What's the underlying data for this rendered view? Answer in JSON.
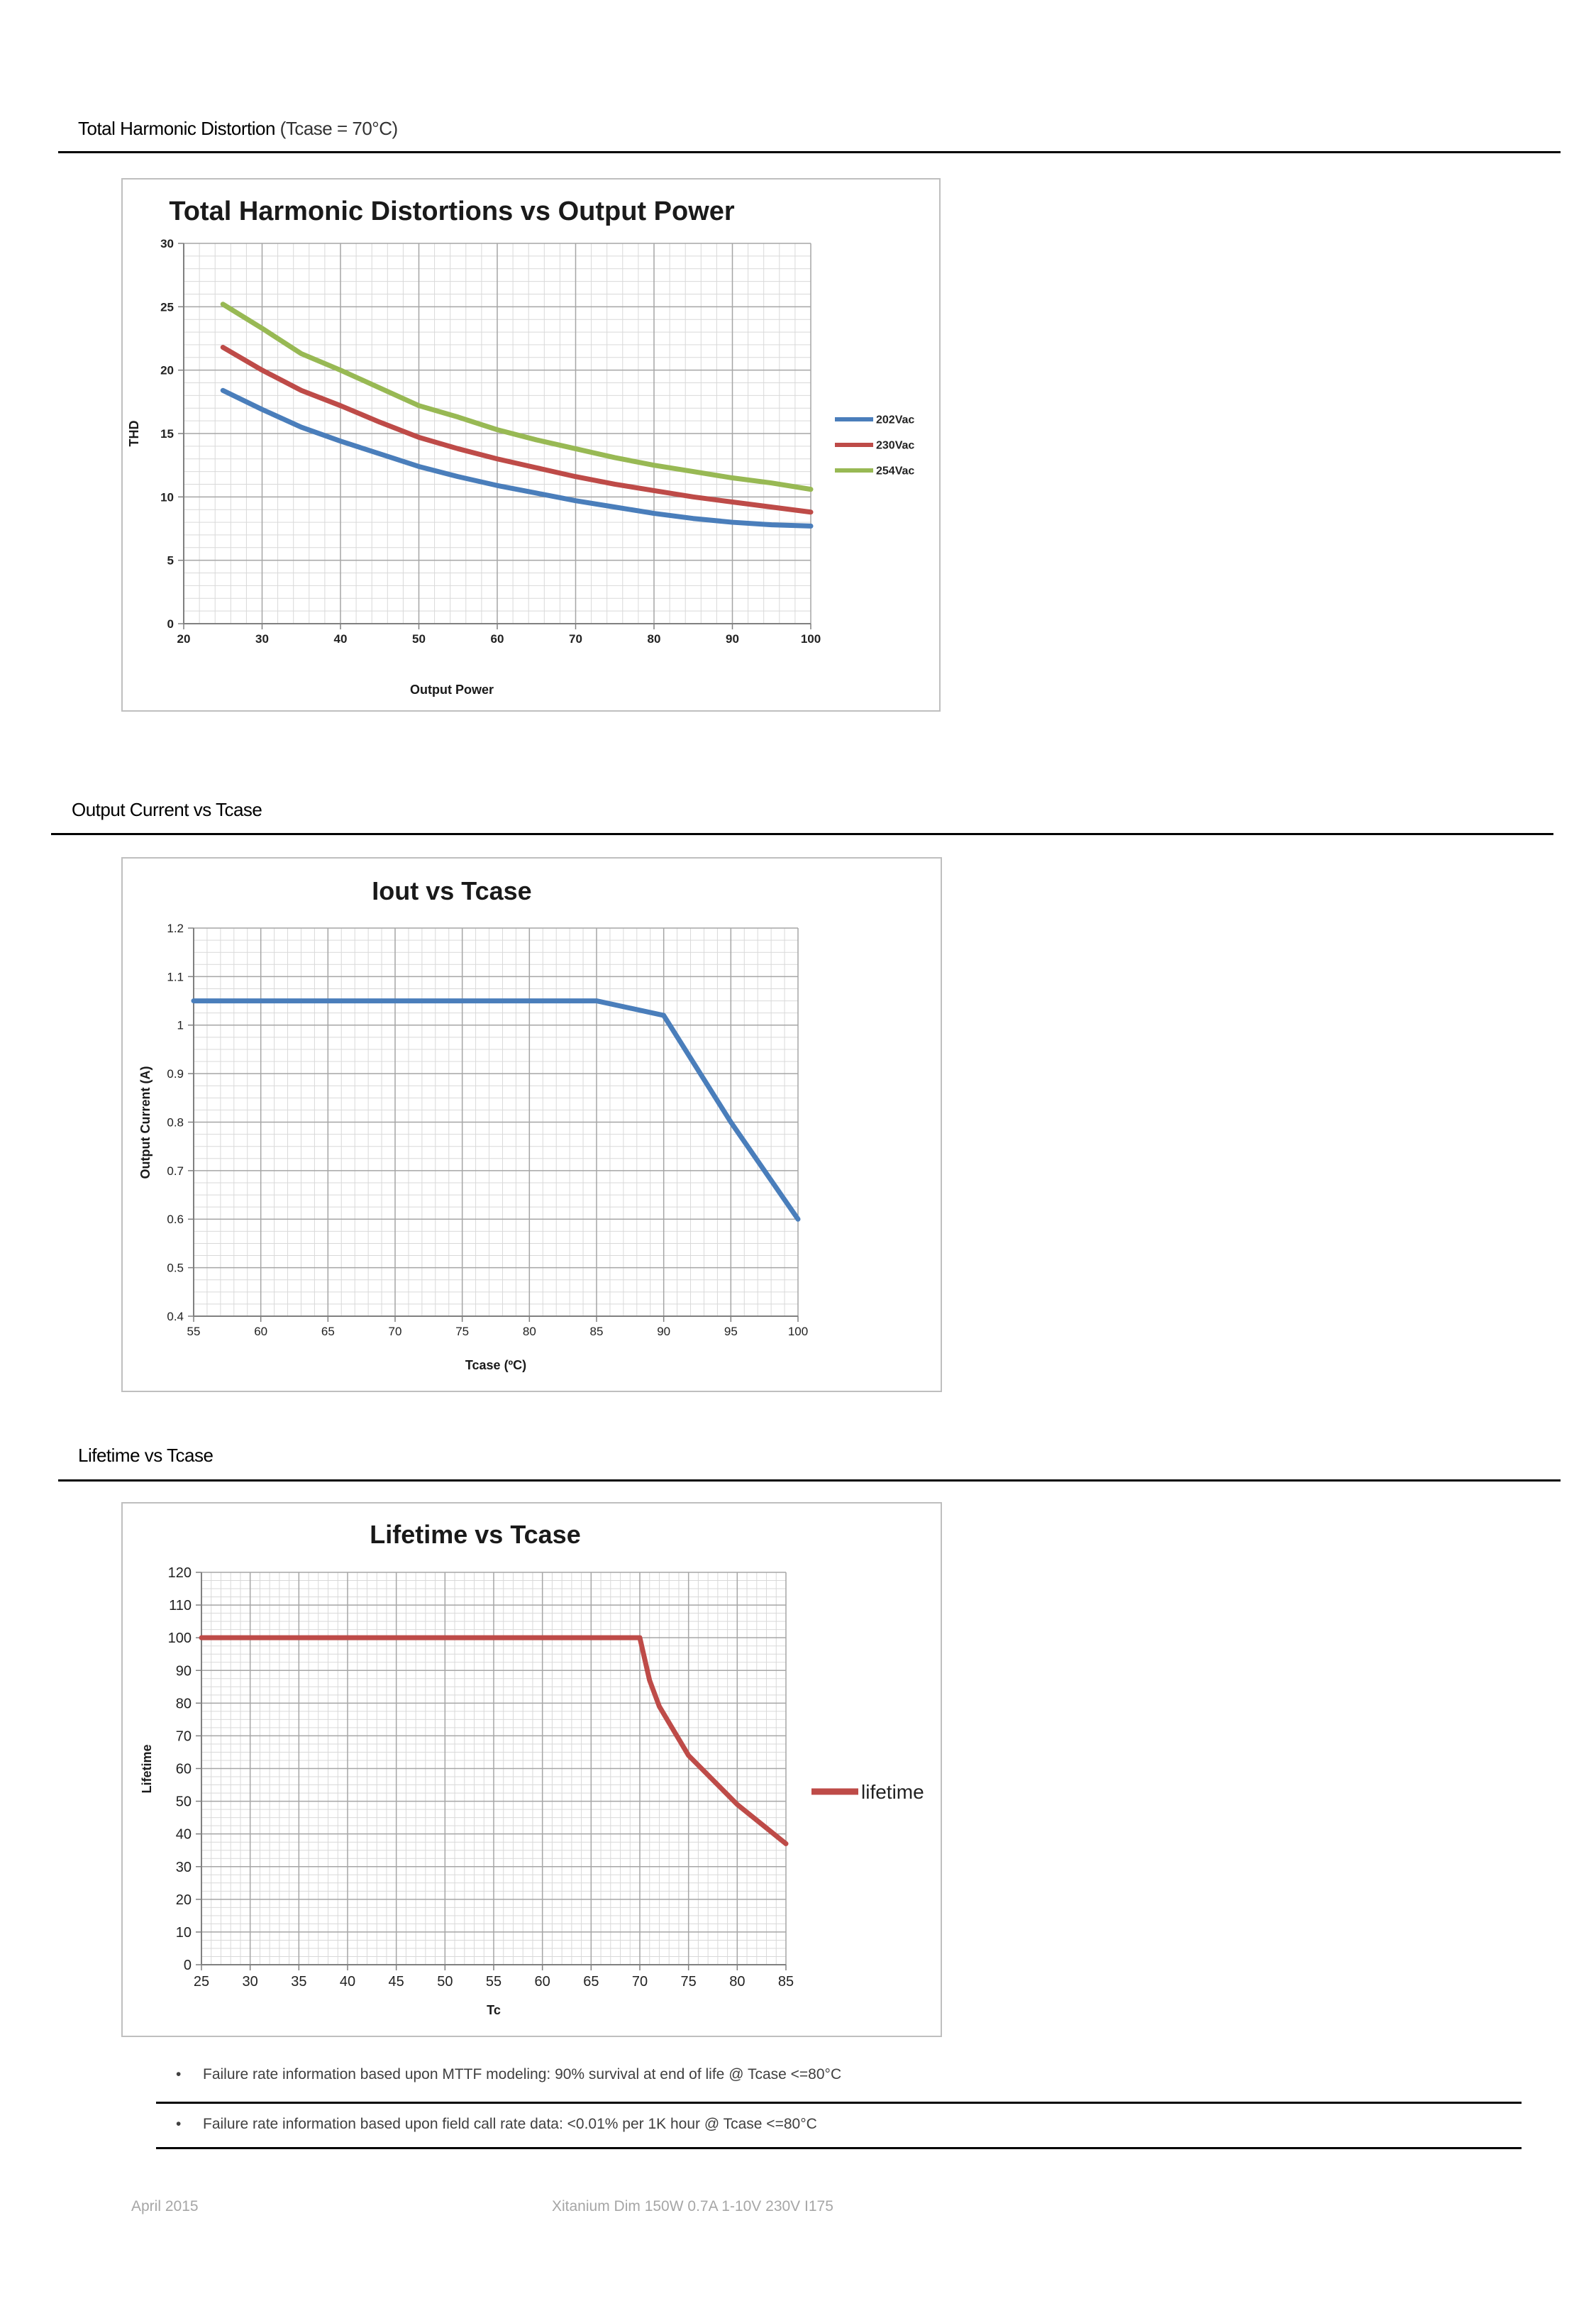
{
  "sections": {
    "thd": {
      "title": "Total Harmonic Distortion",
      "title_suffix": "(Tcase = 70°C)"
    },
    "iout": {
      "title": "Output Current vs Tcase"
    },
    "lifetime": {
      "title": "Lifetime vs Tcase"
    }
  },
  "colors": {
    "blue": "#4a7ebb",
    "red": "#be4b48",
    "green": "#98b954",
    "grid": "#a6a6a6",
    "frame": "#bfbfbf"
  },
  "chart_data": [
    {
      "type": "line",
      "title": "Total Harmonic Distortions vs Output Power",
      "xlabel": "Output Power",
      "ylabel": "THD",
      "xlim": [
        20,
        100
      ],
      "ylim": [
        0,
        30
      ],
      "x_ticks": [
        20,
        30,
        40,
        50,
        60,
        70,
        80,
        90,
        100
      ],
      "y_ticks": [
        0,
        5,
        10,
        15,
        20,
        25,
        30
      ],
      "legend_position": "right",
      "grid": true,
      "series": [
        {
          "name": "202Vac",
          "color": "#4a7ebb",
          "x": [
            25,
            30,
            35,
            40,
            45,
            50,
            55,
            60,
            65,
            70,
            75,
            80,
            85,
            90,
            95,
            100
          ],
          "y": [
            18.4,
            16.9,
            15.5,
            14.4,
            13.4,
            12.4,
            11.6,
            10.9,
            10.3,
            9.7,
            9.2,
            8.7,
            8.3,
            8.0,
            7.8,
            7.7
          ]
        },
        {
          "name": "230Vac",
          "color": "#be4b48",
          "x": [
            25,
            30,
            35,
            40,
            45,
            50,
            55,
            60,
            65,
            70,
            75,
            80,
            85,
            90,
            95,
            100
          ],
          "y": [
            21.8,
            20.0,
            18.4,
            17.2,
            15.9,
            14.7,
            13.8,
            13.0,
            12.3,
            11.6,
            11.0,
            10.5,
            10.0,
            9.6,
            9.2,
            8.8
          ]
        },
        {
          "name": "254Vac",
          "color": "#98b954",
          "x": [
            25,
            30,
            35,
            40,
            45,
            50,
            55,
            60,
            65,
            70,
            75,
            80,
            85,
            90,
            95,
            100
          ],
          "y": [
            25.2,
            23.3,
            21.3,
            20.0,
            18.6,
            17.2,
            16.3,
            15.3,
            14.5,
            13.8,
            13.1,
            12.5,
            12.0,
            11.5,
            11.1,
            10.6
          ]
        }
      ]
    },
    {
      "type": "line",
      "title": "Iout vs Tcase",
      "xlabel": "Tcase (ºC)",
      "ylabel": "Output Current (A)",
      "xlim": [
        55,
        100
      ],
      "ylim": [
        0.4,
        1.2
      ],
      "x_ticks": [
        55,
        60,
        65,
        70,
        75,
        80,
        85,
        90,
        95,
        100
      ],
      "y_ticks": [
        "0.4",
        "0.5",
        "0.6",
        "0.7",
        "0.8",
        "0.9",
        "1",
        "1.1",
        "1.2"
      ],
      "grid": true,
      "series": [
        {
          "color": "#4a7ebb",
          "x": [
            55,
            85,
            90,
            95,
            100
          ],
          "y": [
            1.05,
            1.05,
            1.02,
            0.8,
            0.6
          ]
        }
      ]
    },
    {
      "type": "line",
      "title": "Lifetime vs Tcase",
      "xlabel": "Tc",
      "ylabel": "Lifetime",
      "xlim": [
        25,
        85
      ],
      "ylim": [
        0,
        120
      ],
      "x_ticks": [
        25,
        30,
        35,
        40,
        45,
        50,
        55,
        60,
        65,
        70,
        75,
        80,
        85
      ],
      "y_ticks": [
        0,
        10,
        20,
        30,
        40,
        50,
        60,
        70,
        80,
        90,
        100,
        110,
        120
      ],
      "legend_position": "right",
      "grid": true,
      "series": [
        {
          "name": "lifetime",
          "color": "#be4b48",
          "x": [
            25,
            70,
            71,
            72,
            75,
            80,
            85
          ],
          "y": [
            100,
            100,
            87,
            79,
            64,
            49,
            37
          ]
        }
      ]
    }
  ],
  "notes": [
    "Failure rate information based upon MTTF modeling: 90% survival at end of life @ Tcase <=80°C",
    "Failure rate information based upon field call rate data: <0.01% per 1K hour @ Tcase <=80°C"
  ],
  "bullet_glyph": "•",
  "footer": {
    "date": "April 2015",
    "product": "Xitanium Dim 150W 0.7A 1-10V 230V I175"
  }
}
